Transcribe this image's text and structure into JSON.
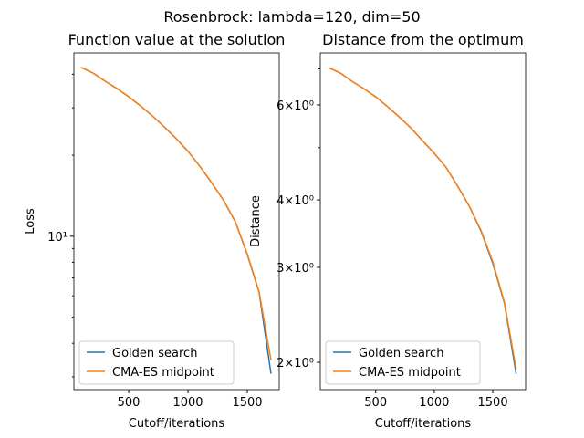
{
  "title": "Rosenbrock: lambda=120, dim=50",
  "chart_data": [
    {
      "type": "line",
      "title": "Function value at the solution",
      "x_label": "Cutoff/iterations",
      "y_label": "Loss",
      "x": [
        100,
        200,
        300,
        400,
        500,
        600,
        700,
        800,
        900,
        1000,
        1100,
        1200,
        1300,
        1400,
        1500,
        1600,
        1700
      ],
      "series": [
        {
          "name": "Golden search",
          "color": "#1f77b4",
          "values": [
            42.4,
            40.4,
            37.7,
            35.4,
            33.0,
            30.5,
            28.0,
            25.5,
            23.1,
            20.7,
            18.2,
            15.8,
            13.6,
            11.3,
            8.55,
            6.17,
            3.08
          ]
        },
        {
          "name": "CMA-ES midpoint",
          "color": "#ff7f0e",
          "values": [
            42.4,
            40.4,
            37.7,
            35.4,
            33.0,
            30.5,
            28.0,
            25.5,
            23.1,
            20.7,
            18.2,
            15.8,
            13.6,
            11.3,
            8.6,
            6.2,
            3.46
          ]
        }
      ],
      "xlim": [
        38,
        1769
      ],
      "xticks": [
        500,
        1000,
        1500
      ],
      "ylim": [
        2.69,
        48
      ],
      "yscale": "log",
      "yticks": [
        {
          "value": 10,
          "label": "10¹"
        }
      ],
      "yminorticks": [
        3,
        4,
        5,
        6,
        7,
        8,
        9,
        20,
        30,
        40
      ],
      "legend": "lower left"
    },
    {
      "type": "line",
      "title": "Distance from the optimum",
      "x_label": "Cutoff/iterations",
      "y_label": "Distance",
      "x": [
        100,
        200,
        300,
        400,
        500,
        600,
        700,
        800,
        900,
        1000,
        1100,
        1200,
        1300,
        1400,
        1500,
        1600,
        1700
      ],
      "series": [
        {
          "name": "Golden search",
          "color": "#1f77b4",
          "values": [
            7.03,
            6.87,
            6.63,
            6.43,
            6.21,
            5.96,
            5.7,
            5.44,
            5.15,
            4.88,
            4.6,
            4.24,
            3.89,
            3.5,
            3.05,
            2.57,
            1.9
          ]
        },
        {
          "name": "CMA-ES midpoint",
          "color": "#ff7f0e",
          "values": [
            7.03,
            6.87,
            6.63,
            6.43,
            6.21,
            5.96,
            5.7,
            5.44,
            5.15,
            4.88,
            4.6,
            4.24,
            3.89,
            3.51,
            3.07,
            2.58,
            1.94
          ]
        }
      ],
      "xlim": [
        27,
        1780
      ],
      "xticks": [
        500,
        1000,
        1500
      ],
      "ylim": [
        1.78,
        7.49
      ],
      "yscale": "log",
      "yticks": [
        {
          "value": 2,
          "label": "2×10⁰"
        },
        {
          "value": 3,
          "label": "3×10⁰"
        },
        {
          "value": 4,
          "label": "4×10⁰"
        },
        {
          "value": 6,
          "label": "6×10⁰"
        }
      ],
      "yminorticks": [
        5,
        7
      ],
      "legend": "lower left"
    }
  ]
}
